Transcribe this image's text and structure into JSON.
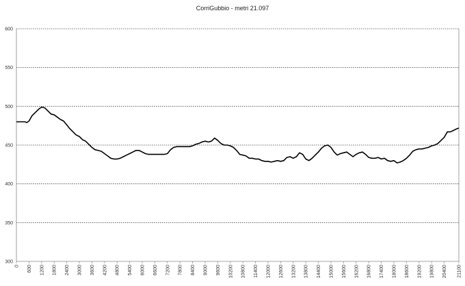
{
  "chart_data": {
    "type": "line",
    "title": "CorriGubbio - metri 21.097",
    "xlabel": "",
    "ylabel": "",
    "xlim": [
      0,
      21097
    ],
    "ylim": [
      300,
      600
    ],
    "y_ticks": [
      "300",
      "350",
      "400",
      "450",
      "500",
      "550",
      "600"
    ],
    "x_ticks": [
      "0",
      "600",
      "1200",
      "1800",
      "2400",
      "3000",
      "3600",
      "4200",
      "4800",
      "5400",
      "6000",
      "6600",
      "7200",
      "7800",
      "8400",
      "9000",
      "9600",
      "10200",
      "10800",
      "11400",
      "12000",
      "12600",
      "13200",
      "13800",
      "14400",
      "15000",
      "15600",
      "16200",
      "16800",
      "17400",
      "18000",
      "18600",
      "19200",
      "19800",
      "20400",
      "21100"
    ],
    "grid": "horizontal-dotted",
    "line_color": "#000000",
    "series": [
      {
        "x": [
          0,
          200,
          400,
          500,
          600,
          750,
          900,
          1050,
          1200,
          1350,
          1500,
          1650,
          1800,
          1950,
          2100,
          2250,
          2400,
          2550,
          2700,
          2850,
          3000,
          3150,
          3300,
          3450,
          3600,
          3750,
          3900,
          4050,
          4200,
          4350,
          4500,
          4650,
          4800,
          4950,
          5100,
          5250,
          5400,
          5550,
          5700,
          5850,
          6000,
          6150,
          6300,
          6450,
          6600,
          6750,
          6900,
          7050,
          7200,
          7350,
          7500,
          7650,
          7800,
          7950,
          8100,
          8250,
          8400,
          8550,
          8700,
          8850,
          9000,
          9150,
          9300,
          9450,
          9600,
          9750,
          9900,
          10050,
          10200,
          10350,
          10500,
          10650,
          10800,
          10950,
          11100,
          11250,
          11400,
          11550,
          11700,
          11850,
          12000,
          12150,
          12300,
          12450,
          12600,
          12750,
          12900,
          13050,
          13200,
          13350,
          13500,
          13650,
          13800,
          13950,
          14100,
          14250,
          14400,
          14550,
          14700,
          14850,
          15000,
          15150,
          15300,
          15450,
          15600,
          15750,
          15900,
          16050,
          16200,
          16350,
          16500,
          16650,
          16800,
          16950,
          17100,
          17250,
          17400,
          17550,
          17700,
          17850,
          18000,
          18150,
          18300,
          18450,
          18600,
          18750,
          18900,
          19050,
          19200,
          19350,
          19500,
          19650,
          19800,
          19950,
          20100,
          20250,
          20400,
          20550,
          20700,
          20850,
          21000,
          21097
        ],
        "y": [
          480,
          480,
          480,
          479,
          481,
          488,
          492,
          496,
          499,
          498,
          494,
          490,
          489,
          486,
          483,
          481,
          476,
          471,
          467,
          463,
          461,
          457,
          455,
          451,
          447,
          444,
          443,
          442,
          439,
          436,
          433,
          432,
          432,
          433,
          435,
          437,
          439,
          441,
          443,
          443,
          441,
          439,
          438,
          438,
          438,
          438,
          438,
          438,
          439,
          444,
          447,
          448,
          448,
          448,
          448,
          448,
          449,
          451,
          452,
          454,
          455,
          454,
          455,
          459,
          456,
          452,
          450,
          450,
          449,
          447,
          443,
          438,
          437,
          436,
          433,
          433,
          432,
          432,
          430,
          429,
          429,
          428,
          429,
          430,
          429,
          430,
          434,
          435,
          433,
          435,
          440,
          438,
          432,
          430,
          433,
          437,
          441,
          446,
          449,
          450,
          447,
          441,
          437,
          439,
          440,
          441,
          438,
          435,
          438,
          440,
          441,
          438,
          434,
          433,
          433,
          434,
          432,
          433,
          430,
          429,
          430,
          427,
          428,
          430,
          433,
          437,
          442,
          444,
          445,
          445,
          446,
          447,
          449,
          450,
          452,
          456,
          460,
          467,
          467,
          469,
          471,
          472
        ]
      }
    ]
  }
}
